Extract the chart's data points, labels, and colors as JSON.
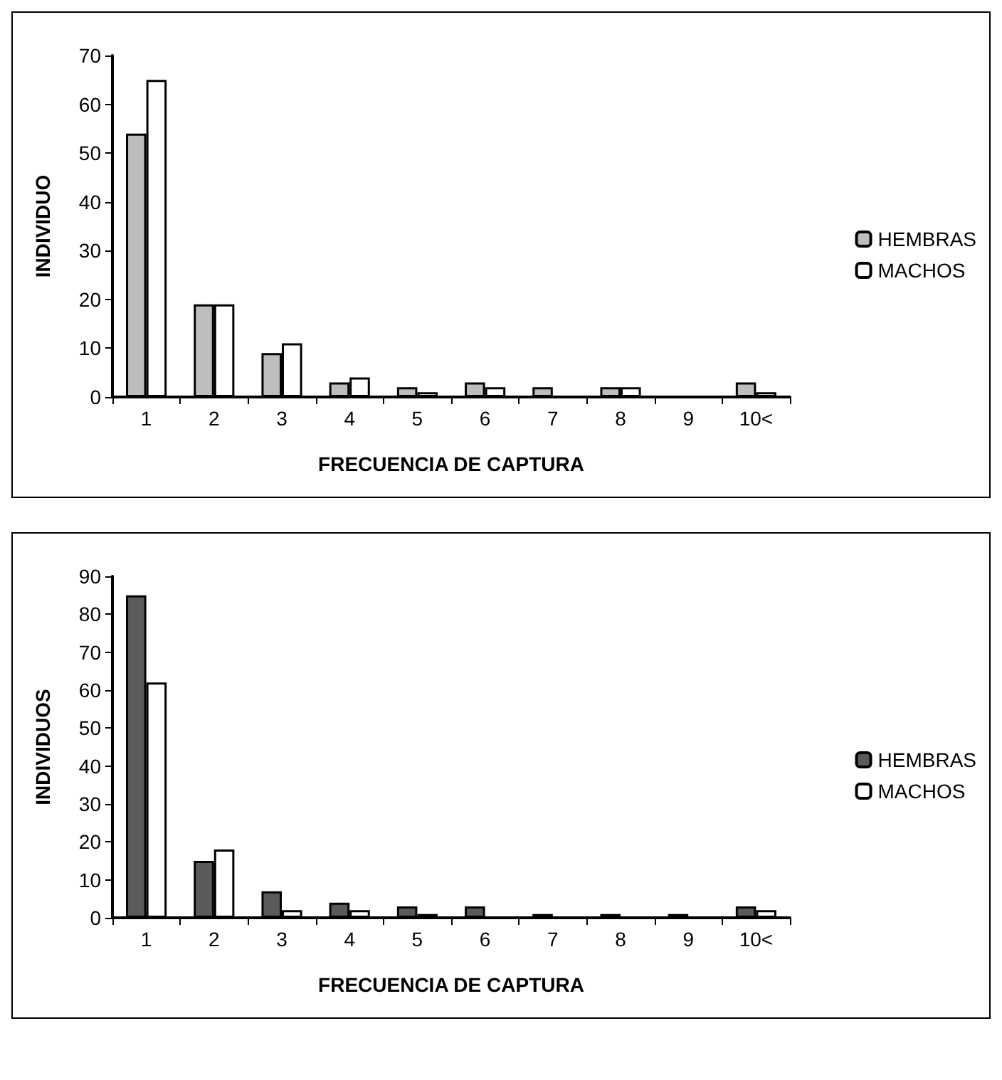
{
  "chart_data": [
    {
      "type": "bar",
      "xlabel": "FRECUENCIA DE CAPTURA",
      "ylabel": "INDIVIDUO",
      "categories": [
        "1",
        "2",
        "3",
        "4",
        "5",
        "6",
        "7",
        "8",
        "9",
        "10<"
      ],
      "series": [
        {
          "name": "HEMBRAS",
          "color": "#bdbdbd",
          "values": [
            54,
            19,
            9,
            3,
            2,
            3,
            2,
            2,
            0,
            3
          ]
        },
        {
          "name": "MACHOS",
          "color": "#ffffff",
          "values": [
            65,
            19,
            11,
            4,
            1,
            2,
            0,
            2,
            0,
            1
          ]
        }
      ],
      "ylim": [
        0,
        70
      ],
      "yticks": [
        0,
        10,
        20,
        30,
        40,
        50,
        60,
        70
      ],
      "grid": false,
      "legend": "right"
    },
    {
      "type": "bar",
      "xlabel": "FRECUENCIA DE CAPTURA",
      "ylabel": "INDIVIDUOS",
      "categories": [
        "1",
        "2",
        "3",
        "4",
        "5",
        "6",
        "7",
        "8",
        "9",
        "10<"
      ],
      "series": [
        {
          "name": "HEMBRAS",
          "color": "#5a5a5a",
          "values": [
            85,
            15,
            7,
            4,
            3,
            3,
            1,
            1,
            1,
            3
          ]
        },
        {
          "name": "MACHOS",
          "color": "#ffffff",
          "values": [
            62,
            18,
            2,
            2,
            1,
            0,
            0,
            0,
            0,
            2
          ]
        }
      ],
      "ylim": [
        0,
        90
      ],
      "yticks": [
        0,
        10,
        20,
        30,
        40,
        50,
        60,
        70,
        80,
        90
      ],
      "grid": false,
      "legend": "right"
    }
  ]
}
